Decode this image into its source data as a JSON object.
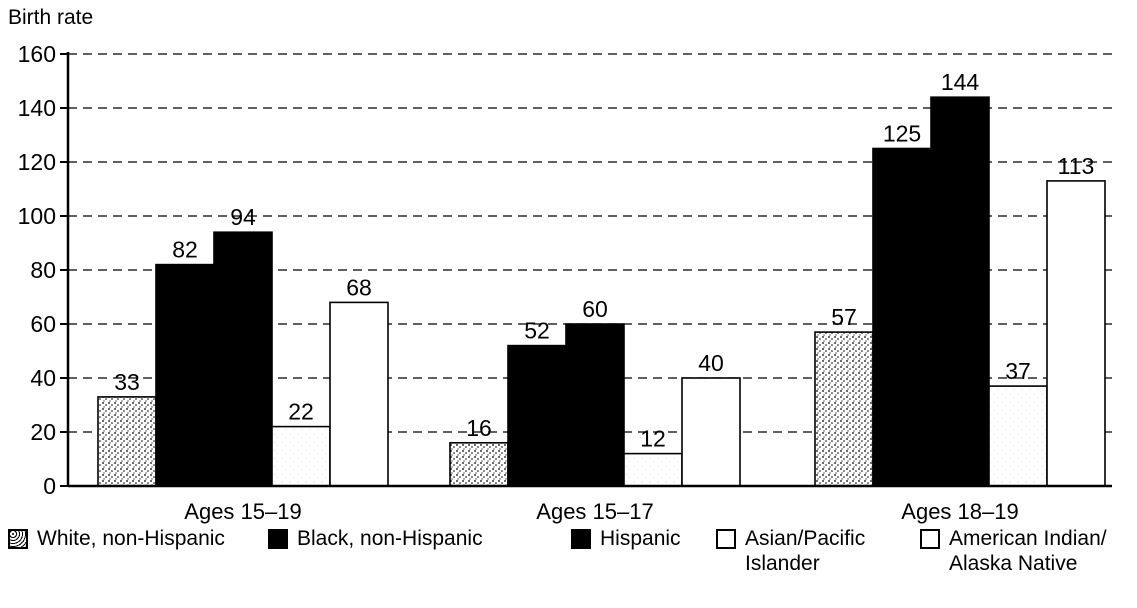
{
  "chart_data": {
    "type": "bar",
    "ylabel": "Birth rate",
    "ylim": [
      0,
      160
    ],
    "yticks": [
      0,
      20,
      40,
      60,
      80,
      100,
      120,
      140,
      160
    ],
    "grid": "dashed horizontal",
    "categories": [
      "Ages 15–19",
      "Ages 15–17",
      "Ages 18–19"
    ],
    "series": [
      {
        "name": "White, non-Hispanic",
        "values": [
          33,
          16,
          57
        ],
        "fill": "stipple-dark"
      },
      {
        "name": "Black, non-Hispanic",
        "values": [
          82,
          52,
          125
        ],
        "fill": "black"
      },
      {
        "name": "Hispanic",
        "values": [
          94,
          60,
          144
        ],
        "fill": "black"
      },
      {
        "name": "Asian/Pacific Islander",
        "values": [
          22,
          12,
          37
        ],
        "fill": "stipple-light"
      },
      {
        "name": "American Indian/ Alaska Native",
        "values": [
          68,
          40,
          113
        ],
        "fill": "white"
      }
    ],
    "legend_placement": "bottom"
  },
  "legend": [
    {
      "label": "White, non-Hispanic"
    },
    {
      "label": "Black, non-Hispanic"
    },
    {
      "label": "Hispanic"
    },
    {
      "label": "Asian/Pacific Islander"
    },
    {
      "label": "American Indian/ Alaska Native"
    }
  ],
  "colors": {
    "black": "#000000",
    "white": "#ffffff",
    "grid": "#000000"
  }
}
